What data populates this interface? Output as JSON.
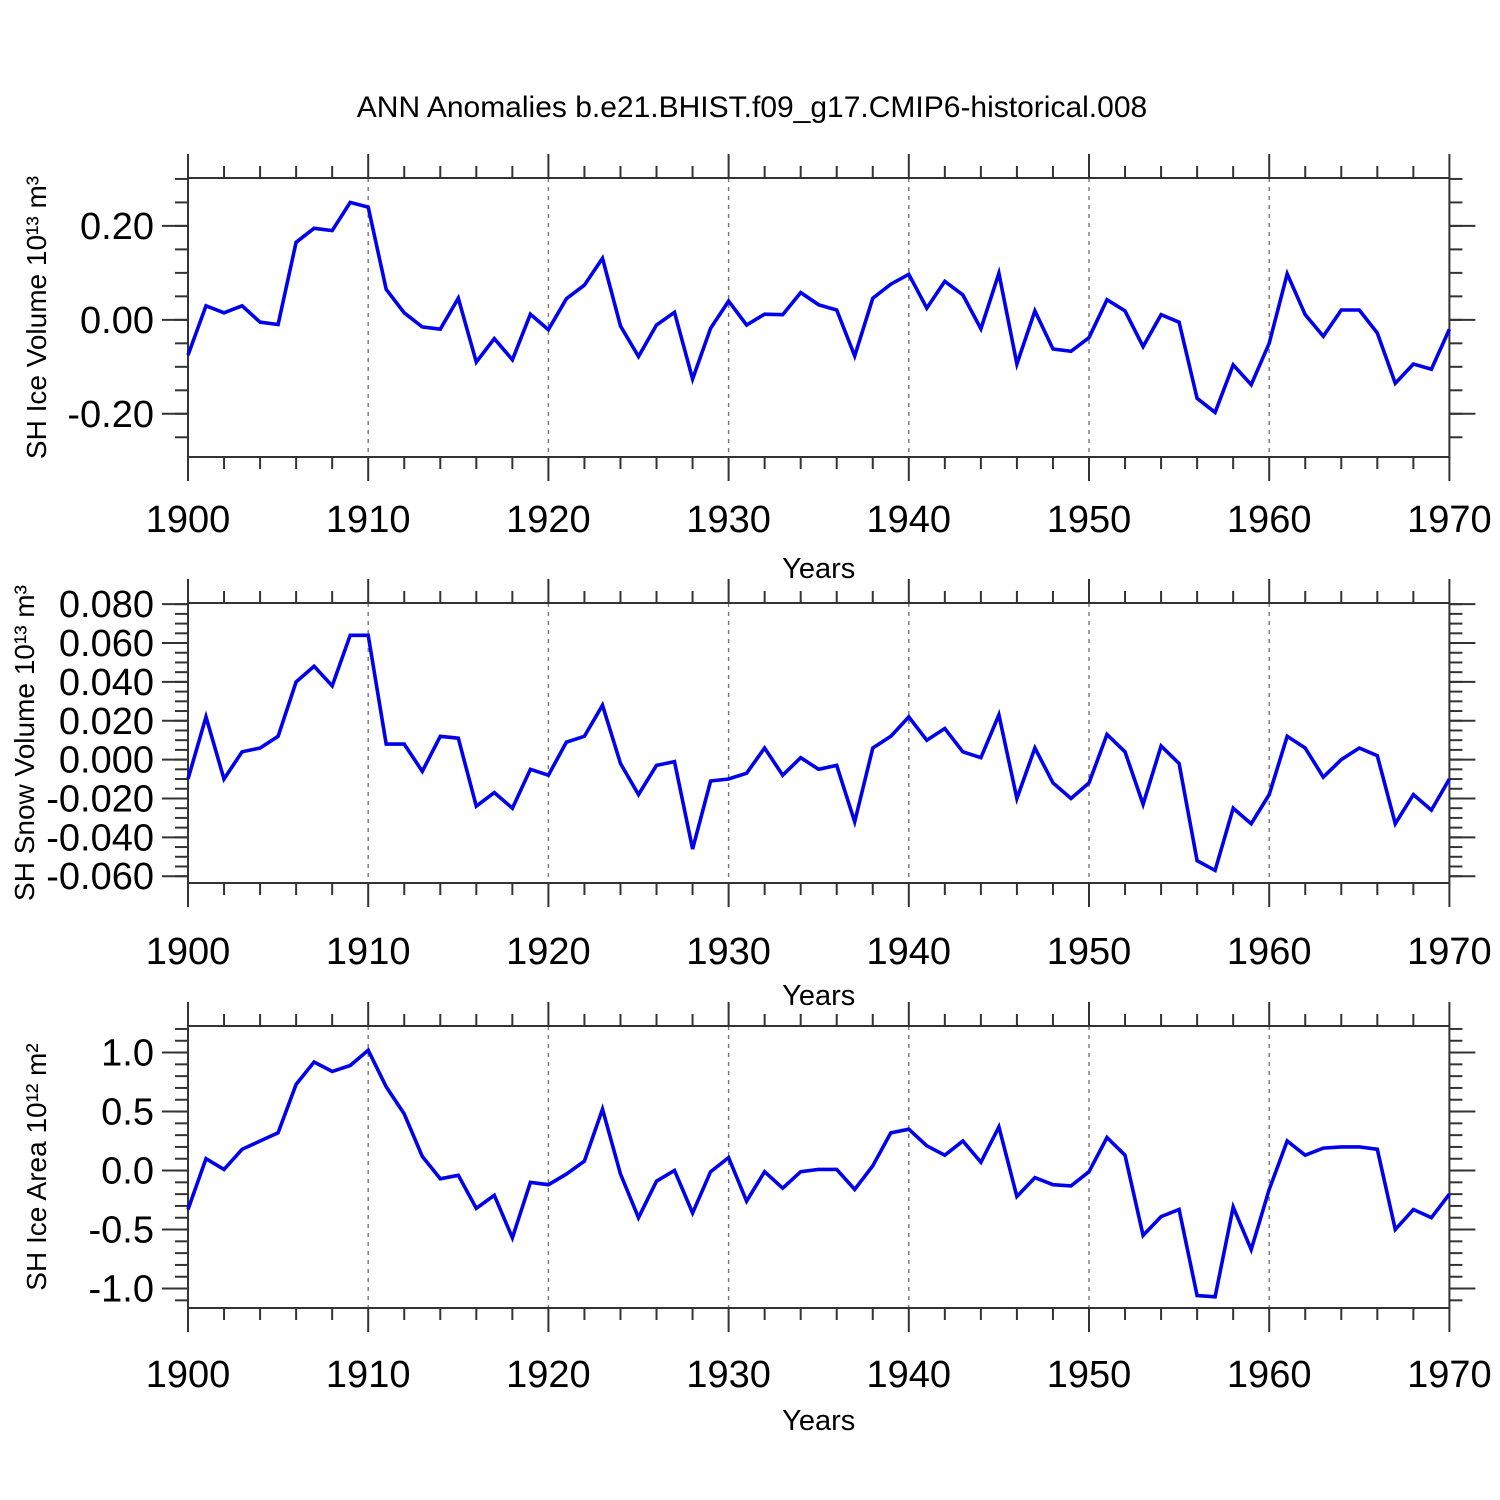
{
  "title": "ANN Anomalies b.e21.BHIST.f09_g17.CMIP6-historical.008",
  "xtick_labels": [
    "1900",
    "1910",
    "1920",
    "1930",
    "1940",
    "1950",
    "1960",
    "1970"
  ],
  "chart_data": [
    {
      "type": "line",
      "series_name": "SH Ice Volume anomaly",
      "ylabel": "SH Ice Volume 10¹³ m³",
      "xlabel": "Years",
      "line_color": "#0000EE",
      "x_start": 1900,
      "x_end": 1970,
      "x_major_step": 10,
      "x_minor_step": 2,
      "grid_decades": [
        1910,
        1920,
        1930,
        1940,
        1950,
        1960
      ],
      "ylim": [
        -0.292,
        0.302
      ],
      "y_minor_step": 0.05,
      "yticks": [
        {
          "value": 0.2,
          "label": "0.20"
        },
        {
          "value": 0.0,
          "label": "0.00"
        },
        {
          "value": -0.2,
          "label": "-0.20"
        }
      ],
      "values": [
        -0.075,
        0.03,
        0.015,
        0.03,
        -0.005,
        -0.01,
        0.165,
        0.195,
        0.19,
        0.25,
        0.24,
        0.065,
        0.015,
        -0.015,
        -0.02,
        0.046,
        -0.09,
        -0.04,
        -0.085,
        0.012,
        -0.021,
        0.045,
        0.074,
        0.131,
        -0.013,
        -0.078,
        -0.011,
        0.016,
        -0.126,
        -0.018,
        0.04,
        -0.011,
        0.012,
        0.011,
        0.058,
        0.032,
        0.021,
        -0.077,
        0.046,
        0.076,
        0.097,
        0.025,
        0.082,
        0.053,
        -0.019,
        0.099,
        -0.094,
        0.019,
        -0.062,
        -0.067,
        -0.038,
        0.043,
        0.019,
        -0.057,
        0.011,
        -0.005,
        -0.167,
        -0.197,
        -0.096,
        -0.138,
        -0.05,
        0.098,
        0.011,
        -0.035,
        0.021,
        0.021,
        -0.028,
        -0.135,
        -0.094,
        -0.105,
        -0.02
      ]
    },
    {
      "type": "line",
      "series_name": "SH Snow Volume anomaly",
      "ylabel": "SH Snow Volume 10¹³ m³",
      "xlabel": "Years",
      "line_color": "#0000EE",
      "x_start": 1900,
      "x_end": 1970,
      "x_major_step": 10,
      "x_minor_step": 2,
      "grid_decades": [
        1910,
        1920,
        1930,
        1940,
        1950,
        1960
      ],
      "ylim": [
        -0.0635,
        0.0806
      ],
      "y_minor_step": 0.005,
      "yticks": [
        {
          "value": 0.08,
          "label": "0.080"
        },
        {
          "value": 0.06,
          "label": "0.060"
        },
        {
          "value": 0.04,
          "label": "0.040"
        },
        {
          "value": 0.02,
          "label": "0.020"
        },
        {
          "value": 0.0,
          "label": "0.000"
        },
        {
          "value": -0.02,
          "label": "-0.020"
        },
        {
          "value": -0.04,
          "label": "-0.040"
        },
        {
          "value": -0.06,
          "label": "-0.060"
        }
      ],
      "values": [
        -0.01,
        0.022,
        -0.01,
        0.004,
        0.006,
        0.012,
        0.04,
        0.048,
        0.038,
        0.064,
        0.064,
        0.008,
        0.008,
        -0.006,
        0.012,
        0.011,
        -0.024,
        -0.017,
        -0.025,
        -0.005,
        -0.008,
        0.009,
        0.012,
        0.028,
        -0.002,
        -0.018,
        -0.003,
        -0.001,
        -0.046,
        -0.011,
        -0.01,
        -0.007,
        0.006,
        -0.008,
        0.001,
        -0.005,
        -0.003,
        -0.032,
        0.006,
        0.012,
        0.022,
        0.01,
        0.016,
        0.004,
        0.001,
        0.023,
        -0.02,
        0.006,
        -0.012,
        -0.02,
        -0.012,
        0.013,
        0.004,
        -0.023,
        0.007,
        -0.002,
        -0.052,
        -0.057,
        -0.025,
        -0.033,
        -0.018,
        0.012,
        0.006,
        -0.009,
        0.0,
        0.006,
        0.002,
        -0.033,
        -0.018,
        -0.026,
        -0.01
      ]
    },
    {
      "type": "line",
      "series_name": "SH Ice Area anomaly",
      "ylabel": "SH Ice Area 10¹² m²",
      "xlabel": "Years",
      "line_color": "#0000EE",
      "x_start": 1900,
      "x_end": 1970,
      "x_major_step": 10,
      "x_minor_step": 2,
      "grid_decades": [
        1910,
        1920,
        1930,
        1940,
        1950,
        1960
      ],
      "ylim": [
        -1.165,
        1.225
      ],
      "y_minor_step": 0.1,
      "yticks": [
        {
          "value": 1.0,
          "label": "1.0"
        },
        {
          "value": 0.5,
          "label": "0.5"
        },
        {
          "value": 0.0,
          "label": "0.0"
        },
        {
          "value": -0.5,
          "label": "-0.5"
        },
        {
          "value": -1.0,
          "label": "-1.0"
        }
      ],
      "values": [
        -0.33,
        0.1,
        0.01,
        0.18,
        0.25,
        0.32,
        0.73,
        0.92,
        0.84,
        0.89,
        1.02,
        0.71,
        0.48,
        0.12,
        -0.07,
        -0.04,
        -0.32,
        -0.21,
        -0.57,
        -0.1,
        -0.12,
        -0.03,
        0.08,
        0.52,
        -0.03,
        -0.4,
        -0.09,
        0.0,
        -0.36,
        -0.01,
        0.11,
        -0.26,
        -0.01,
        -0.15,
        -0.01,
        0.01,
        0.01,
        -0.16,
        0.04,
        0.32,
        0.35,
        0.21,
        0.13,
        0.25,
        0.07,
        0.37,
        -0.22,
        -0.06,
        -0.12,
        -0.13,
        -0.01,
        0.28,
        0.13,
        -0.55,
        -0.39,
        -0.33,
        -1.06,
        -1.07,
        -0.31,
        -0.67,
        -0.16,
        0.25,
        0.13,
        0.19,
        0.2,
        0.2,
        0.18,
        -0.5,
        -0.33,
        -0.4,
        -0.2
      ]
    }
  ]
}
